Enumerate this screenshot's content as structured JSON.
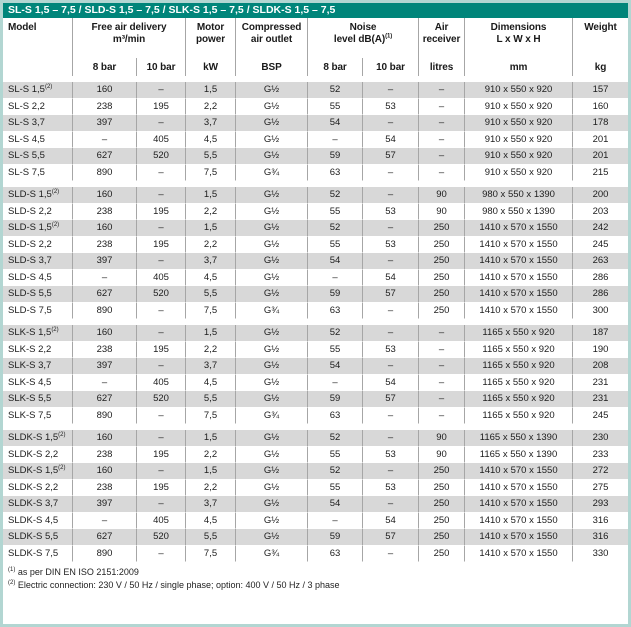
{
  "title_bar": {
    "text": "SL-S 1,5 – 7,5 / SLD-S 1,5 – 7,5 / SLK-S 1,5 – 7,5 / SLDK-S 1,5 – 7,5"
  },
  "header": {
    "model_label": "Model",
    "groups": [
      {
        "line1": "Free air delivery",
        "line2": "m³/min",
        "sup": ""
      },
      {
        "line1": "Motor",
        "line2": "power",
        "sup": ""
      },
      {
        "line1": "Compressed",
        "line2": "air outlet",
        "sup": ""
      },
      {
        "line1": "Noise",
        "line2": "level dB(A)",
        "sup": "(1)"
      },
      {
        "line1": "Air",
        "line2": "receiver",
        "sup": ""
      },
      {
        "line1": "Dimensions",
        "line2": "L x W x H",
        "sup": ""
      },
      {
        "line1": "Weight",
        "line2": "",
        "sup": ""
      }
    ],
    "subs": [
      "8 bar",
      "10 bar",
      "kW",
      "BSP",
      "8 bar",
      "10 bar",
      "litres",
      "mm",
      "kg"
    ]
  },
  "sections": [
    {
      "rows": [
        {
          "model": "SL-S 1,5",
          "sup": "(2)",
          "values": [
            "160",
            "–",
            "1,5",
            "G½",
            "52",
            "–",
            "–",
            "910 x 550 x 920",
            "157"
          ]
        },
        {
          "model": "SL-S 2,2",
          "sup": "",
          "values": [
            "238",
            "195",
            "2,2",
            "G½",
            "55",
            "53",
            "–",
            "910 x 550 x 920",
            "160"
          ]
        },
        {
          "model": "SL-S 3,7",
          "sup": "",
          "values": [
            "397",
            "–",
            "3,7",
            "G½",
            "54",
            "–",
            "–",
            "910 x 550 x 920",
            "178"
          ]
        },
        {
          "model": "SL-S 4,5",
          "sup": "",
          "values": [
            "–",
            "405",
            "4,5",
            "G½",
            "–",
            "54",
            "–",
            "910 x 550 x 920",
            "201"
          ]
        },
        {
          "model": "SL-S 5,5",
          "sup": "",
          "values": [
            "627",
            "520",
            "5,5",
            "G½",
            "59",
            "57",
            "–",
            "910 x 550 x 920",
            "201"
          ]
        },
        {
          "model": "SL-S 7,5",
          "sup": "",
          "values": [
            "890",
            "–",
            "7,5",
            "G¾",
            "63",
            "–",
            "–",
            "910 x 550 x 920",
            "215"
          ]
        }
      ]
    },
    {
      "rows": [
        {
          "model": "SLD-S 1,5",
          "sup": "(2)",
          "values": [
            "160",
            "–",
            "1,5",
            "G½",
            "52",
            "–",
            "90",
            "980 x 550 x 1390",
            "200"
          ]
        },
        {
          "model": "SLD-S 2,2",
          "sup": "",
          "values": [
            "238",
            "195",
            "2,2",
            "G½",
            "55",
            "53",
            "90",
            "980 x 550 x 1390",
            "203"
          ]
        },
        {
          "model": "SLD-S 1,5",
          "sup": "(2)",
          "values": [
            "160",
            "–",
            "1,5",
            "G½",
            "52",
            "–",
            "250",
            "1410 x 570 x 1550",
            "242"
          ]
        },
        {
          "model": "SLD-S 2,2",
          "sup": "",
          "values": [
            "238",
            "195",
            "2,2",
            "G½",
            "55",
            "53",
            "250",
            "1410 x 570 x 1550",
            "245"
          ]
        },
        {
          "model": "SLD-S 3,7",
          "sup": "",
          "values": [
            "397",
            "–",
            "3,7",
            "G½",
            "54",
            "–",
            "250",
            "1410 x 570 x 1550",
            "263"
          ]
        },
        {
          "model": "SLD-S 4,5",
          "sup": "",
          "values": [
            "–",
            "405",
            "4,5",
            "G½",
            "–",
            "54",
            "250",
            "1410 x 570 x 1550",
            "286"
          ]
        },
        {
          "model": "SLD-S 5,5",
          "sup": "",
          "values": [
            "627",
            "520",
            "5,5",
            "G½",
            "59",
            "57",
            "250",
            "1410 x 570 x 1550",
            "286"
          ]
        },
        {
          "model": "SLD-S 7,5",
          "sup": "",
          "values": [
            "890",
            "–",
            "7,5",
            "G¾",
            "63",
            "–",
            "250",
            "1410 x 570 x 1550",
            "300"
          ]
        }
      ]
    },
    {
      "rows": [
        {
          "model": "SLK-S 1,5",
          "sup": "(2)",
          "values": [
            "160",
            "–",
            "1,5",
            "G½",
            "52",
            "–",
            "–",
            "1165 x 550 x 920",
            "187"
          ]
        },
        {
          "model": "SLK-S 2,2",
          "sup": "",
          "values": [
            "238",
            "195",
            "2,2",
            "G½",
            "55",
            "53",
            "–",
            "1165 x 550 x 920",
            "190"
          ]
        },
        {
          "model": "SLK-S 3,7",
          "sup": "",
          "values": [
            "397",
            "–",
            "3,7",
            "G½",
            "54",
            "–",
            "–",
            "1165 x 550 x 920",
            "208"
          ]
        },
        {
          "model": "SLK-S 4,5",
          "sup": "",
          "values": [
            "–",
            "405",
            "4,5",
            "G½",
            "–",
            "54",
            "–",
            "1165 x 550 x 920",
            "231"
          ]
        },
        {
          "model": "SLK-S 5,5",
          "sup": "",
          "values": [
            "627",
            "520",
            "5,5",
            "G½",
            "59",
            "57",
            "–",
            "1165 x 550 x 920",
            "231"
          ]
        },
        {
          "model": "SLK-S 7,5",
          "sup": "",
          "values": [
            "890",
            "–",
            "7,5",
            "G¾",
            "63",
            "–",
            "–",
            "1165 x 550 x 920",
            "245"
          ]
        }
      ]
    },
    {
      "rows": [
        {
          "model": "SLDK-S 1,5",
          "sup": "(2)",
          "values": [
            "160",
            "–",
            "1,5",
            "G½",
            "52",
            "–",
            "90",
            "1165 x 550 x 1390",
            "230"
          ]
        },
        {
          "model": "SLDK-S 2,2",
          "sup": "",
          "values": [
            "238",
            "195",
            "2,2",
            "G½",
            "55",
            "53",
            "90",
            "1165 x 550 x 1390",
            "233"
          ]
        },
        {
          "model": "SLDK-S 1,5",
          "sup": "(2)",
          "values": [
            "160",
            "–",
            "1,5",
            "G½",
            "52",
            "–",
            "250",
            "1410 x 570 x 1550",
            "272"
          ]
        },
        {
          "model": "SLDK-S 2,2",
          "sup": "",
          "values": [
            "238",
            "195",
            "2,2",
            "G½",
            "55",
            "53",
            "250",
            "1410 x 570 x 1550",
            "275"
          ]
        },
        {
          "model": "SLDK-S 3,7",
          "sup": "",
          "values": [
            "397",
            "–",
            "3,7",
            "G½",
            "54",
            "–",
            "250",
            "1410 x 570 x 1550",
            "293"
          ]
        },
        {
          "model": "SLDK-S 4,5",
          "sup": "",
          "values": [
            "–",
            "405",
            "4,5",
            "G½",
            "–",
            "54",
            "250",
            "1410 x 570 x 1550",
            "316"
          ]
        },
        {
          "model": "SLDK-S 5,5",
          "sup": "",
          "values": [
            "627",
            "520",
            "5,5",
            "G½",
            "59",
            "57",
            "250",
            "1410 x 570 x 1550",
            "316"
          ]
        },
        {
          "model": "SLDK-S 7,5",
          "sup": "",
          "values": [
            "890",
            "–",
            "7,5",
            "G¾",
            "63",
            "–",
            "250",
            "1410 x 570 x 1550",
            "330"
          ]
        }
      ]
    }
  ],
  "footnotes": [
    {
      "sup": "(1)",
      "text": "as per DIN EN ISO 2151:2009"
    },
    {
      "sup": "(2)",
      "text": "Electric connection: 230 V / 50 Hz / single phase; option: 400 V / 50 Hz / 3 phase"
    }
  ],
  "colors": {
    "title_bar_bg": "#00857a",
    "outer_border": "#b2d6d2",
    "row_shaded": "#d8d8d8",
    "cell_separator": "#a6a6a6"
  }
}
